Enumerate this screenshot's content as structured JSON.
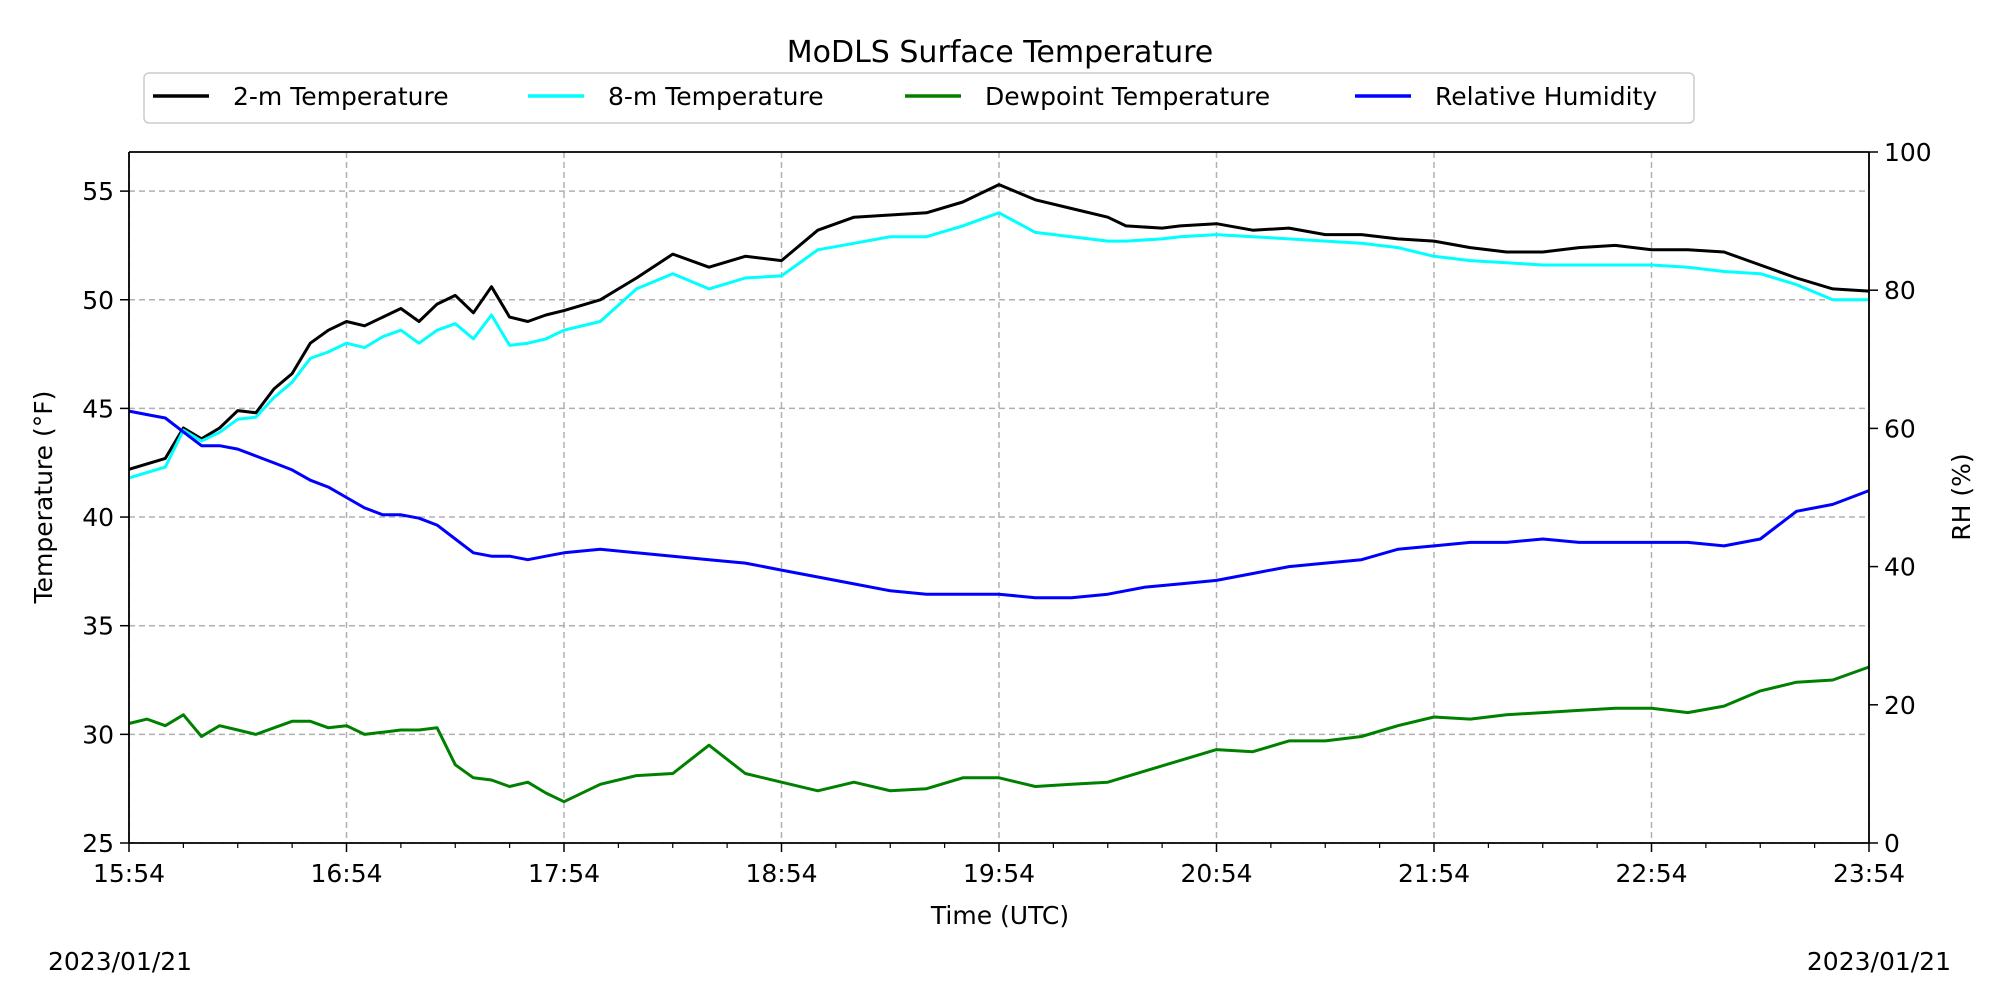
{
  "chart_data": {
    "type": "line",
    "title": "MoDLS Surface Temperature",
    "xlabel": "Time (UTC)",
    "ylabel": "Temperature ($^\\circ$F)",
    "ylabel_display": "Temperature (°F)",
    "y2label": "RH (%)",
    "date_left": "2023/01/21",
    "date_right": "2023/01/21",
    "x_ticks": [
      "15:54",
      "16:54",
      "17:54",
      "18:54",
      "19:54",
      "20:54",
      "21:54",
      "22:54",
      "23:54"
    ],
    "y_ticks": [
      25,
      30,
      35,
      40,
      45,
      50,
      55
    ],
    "y2_ticks": [
      0,
      20,
      40,
      60,
      80,
      100
    ],
    "xlim": [
      0,
      480
    ],
    "ylim": [
      25,
      56.8
    ],
    "y2lim": [
      0,
      100
    ],
    "grid": true,
    "legend_position": "top",
    "x_units": "minutes after 15:54 UTC",
    "series": [
      {
        "name": "2-m Temperature",
        "color": "#000000",
        "axis": "left",
        "x": [
          0,
          10,
          15,
          20,
          25,
          30,
          35,
          40,
          45,
          50,
          55,
          60,
          65,
          70,
          75,
          80,
          85,
          90,
          95,
          100,
          105,
          110,
          115,
          120,
          130,
          140,
          150,
          160,
          170,
          180,
          190,
          200,
          210,
          220,
          230,
          240,
          250,
          260,
          270,
          275,
          285,
          290,
          300,
          310,
          320,
          330,
          340,
          350,
          360,
          370,
          380,
          390,
          400,
          410,
          420,
          430,
          440,
          450,
          460,
          470,
          480
        ],
        "y": [
          42.2,
          42.7,
          44.1,
          43.6,
          44.1,
          44.9,
          44.8,
          45.9,
          46.6,
          48.0,
          48.6,
          49.0,
          48.8,
          49.2,
          49.6,
          49.0,
          49.8,
          50.2,
          49.4,
          50.6,
          49.2,
          49.0,
          49.3,
          49.5,
          50.0,
          51.0,
          52.1,
          51.5,
          52.0,
          51.8,
          53.2,
          53.8,
          53.9,
          54.0,
          54.5,
          55.3,
          54.6,
          54.2,
          53.8,
          53.4,
          53.3,
          53.4,
          53.5,
          53.2,
          53.3,
          53.0,
          53.0,
          52.8,
          52.7,
          52.4,
          52.2,
          52.2,
          52.4,
          52.5,
          52.3,
          52.3,
          52.2,
          51.6,
          51.0,
          50.5,
          50.4
        ]
      },
      {
        "name": "8-m Temperature",
        "color": "#00ffff",
        "axis": "left",
        "x": [
          0,
          10,
          15,
          20,
          25,
          30,
          35,
          40,
          45,
          50,
          55,
          60,
          65,
          70,
          75,
          80,
          85,
          90,
          95,
          100,
          105,
          110,
          115,
          120,
          130,
          140,
          150,
          160,
          170,
          180,
          190,
          200,
          210,
          220,
          230,
          240,
          250,
          260,
          270,
          275,
          285,
          290,
          300,
          310,
          320,
          330,
          340,
          350,
          360,
          370,
          380,
          390,
          400,
          410,
          420,
          430,
          440,
          450,
          460,
          470,
          480
        ],
        "y": [
          41.8,
          42.3,
          44.0,
          43.5,
          43.9,
          44.5,
          44.6,
          45.5,
          46.2,
          47.3,
          47.6,
          48.0,
          47.8,
          48.3,
          48.6,
          48.0,
          48.6,
          48.9,
          48.2,
          49.3,
          47.9,
          48.0,
          48.2,
          48.6,
          49.0,
          50.5,
          51.2,
          50.5,
          51.0,
          51.1,
          52.3,
          52.6,
          52.9,
          52.9,
          53.4,
          54.0,
          53.1,
          52.9,
          52.7,
          52.7,
          52.8,
          52.9,
          53.0,
          52.9,
          52.8,
          52.7,
          52.6,
          52.4,
          52.0,
          51.8,
          51.7,
          51.6,
          51.6,
          51.6,
          51.6,
          51.5,
          51.3,
          51.2,
          50.7,
          50.0,
          50.0
        ]
      },
      {
        "name": "Dewpoint Temperature",
        "color": "#008000",
        "axis": "left",
        "x": [
          0,
          5,
          10,
          15,
          20,
          25,
          30,
          35,
          40,
          45,
          50,
          55,
          60,
          65,
          70,
          75,
          80,
          85,
          90,
          95,
          100,
          105,
          110,
          115,
          120,
          130,
          140,
          150,
          160,
          170,
          180,
          190,
          200,
          210,
          220,
          230,
          240,
          250,
          260,
          270,
          280,
          290,
          300,
          310,
          320,
          330,
          340,
          350,
          360,
          370,
          380,
          390,
          400,
          410,
          420,
          430,
          440,
          450,
          460,
          470,
          480
        ],
        "y": [
          30.5,
          30.7,
          30.4,
          30.9,
          29.9,
          30.4,
          30.2,
          30.0,
          30.3,
          30.6,
          30.6,
          30.3,
          30.4,
          30.0,
          30.1,
          30.2,
          30.2,
          30.3,
          28.6,
          28.0,
          27.9,
          27.6,
          27.8,
          27.3,
          26.9,
          27.7,
          28.1,
          28.2,
          29.5,
          28.2,
          27.8,
          27.4,
          27.8,
          27.4,
          27.5,
          28.0,
          28.0,
          27.6,
          27.7,
          27.8,
          28.3,
          28.8,
          29.3,
          29.2,
          29.7,
          29.7,
          29.9,
          30.4,
          30.8,
          30.7,
          30.9,
          31.0,
          31.1,
          31.2,
          31.2,
          31.0,
          31.3,
          32.0,
          32.4,
          32.5,
          33.1
        ]
      },
      {
        "name": "Relative Humidity",
        "color": "#0000ff",
        "axis": "right",
        "x": [
          0,
          5,
          10,
          15,
          20,
          25,
          30,
          35,
          40,
          45,
          50,
          55,
          60,
          65,
          70,
          75,
          80,
          85,
          90,
          95,
          100,
          105,
          110,
          115,
          120,
          130,
          140,
          150,
          160,
          170,
          180,
          190,
          200,
          210,
          220,
          230,
          240,
          250,
          260,
          270,
          280,
          290,
          300,
          310,
          320,
          330,
          340,
          350,
          360,
          370,
          380,
          390,
          400,
          410,
          420,
          430,
          440,
          450,
          460,
          470,
          480
        ],
        "y": [
          62.5,
          62.0,
          61.5,
          59.5,
          57.5,
          57.5,
          57.0,
          56.0,
          55.0,
          54.0,
          52.5,
          51.5,
          50.0,
          48.5,
          47.5,
          47.5,
          47.0,
          46.0,
          44.0,
          42.0,
          41.5,
          41.5,
          41.0,
          41.5,
          42.0,
          42.5,
          42.0,
          41.5,
          41.0,
          40.5,
          39.5,
          38.5,
          37.5,
          36.5,
          36.0,
          36.0,
          36.0,
          35.5,
          35.5,
          36.0,
          37.0,
          37.5,
          38.0,
          39.0,
          40.0,
          40.5,
          41.0,
          42.5,
          43.0,
          43.5,
          43.5,
          44.0,
          43.5,
          43.5,
          43.5,
          43.5,
          43.0,
          44.0,
          48.0,
          49.0,
          51.0
        ]
      }
    ]
  }
}
